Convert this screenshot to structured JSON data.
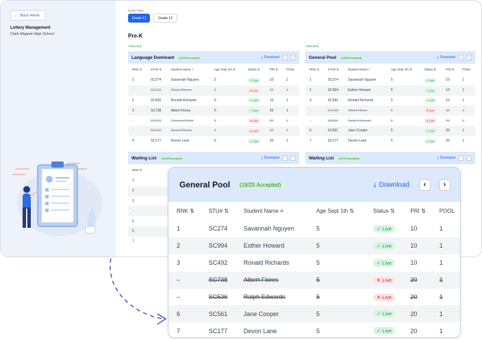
{
  "sidebar": {
    "back_label": "Back Home",
    "title": "Lottery Management",
    "school": "Clark Magnet High School"
  },
  "main": {
    "filter_label": "Smart Filter",
    "grades": [
      "Grade 11",
      "Grade 12"
    ],
    "section_title": "Pre-K",
    "selected_label": "*Selected"
  },
  "columns": [
    "RNK",
    "STU#",
    "Student Name",
    "Age Sept 1th",
    "Status",
    "PRI",
    "POOL"
  ],
  "download_label": "Download",
  "status_labels": {
    "live": "Live",
    "nolive": "Live"
  },
  "language_dominant": {
    "title": "Language Dominant",
    "badge": "(19/25 Accepted)",
    "rows": [
      {
        "rnk": "1",
        "stu": "SC274",
        "name": "Savannah Nguyen",
        "age": "5",
        "status": "live",
        "pri": "10",
        "pool": "1"
      },
      {
        "rnk": "–",
        "stu": "SC423",
        "name": "Wade Warren",
        "age": "5",
        "status": "nolive",
        "pri": "10",
        "pool": "1"
      },
      {
        "rnk": "2",
        "stu": "SC492",
        "name": "Ronald Richards",
        "age": "5",
        "status": "live",
        "pri": "10",
        "pool": "1"
      },
      {
        "rnk": "3",
        "stu": "SC738",
        "name": "Albert Flores",
        "age": "5",
        "status": "live",
        "pri": "20",
        "pool": "1"
      },
      {
        "rnk": "–",
        "stu": "SC463",
        "name": "Theresa Webb",
        "age": "5",
        "status": "nolive",
        "pri": "50",
        "pool": "1"
      },
      {
        "rnk": "–",
        "stu": "SC423",
        "name": "Wade Warren",
        "age": "5",
        "status": "nolive",
        "pri": "50",
        "pool": "1"
      },
      {
        "rnk": "4",
        "stu": "SC177",
        "name": "Devon Lane",
        "age": "5",
        "status": "live",
        "pri": "20",
        "pool": "1"
      }
    ]
  },
  "general_pool": {
    "title": "General Pool",
    "badge": "(19/25 Accepted)",
    "rows": [
      {
        "rnk": "1",
        "stu": "SC274",
        "name": "Savannah Nguyen",
        "age": "5",
        "status": "live",
        "pri": "10",
        "pool": "1"
      },
      {
        "rnk": "2",
        "stu": "SC994",
        "name": "Esther Howard",
        "age": "5",
        "status": "live",
        "pri": "10",
        "pool": "1"
      },
      {
        "rnk": "3",
        "stu": "SC492",
        "name": "Ronald Richards",
        "age": "5",
        "status": "live",
        "pri": "10",
        "pool": "1"
      },
      {
        "rnk": "–",
        "stu": "SC738",
        "name": "Albert Flores",
        "age": "5",
        "status": "nolive",
        "pri": "20",
        "pool": "1"
      },
      {
        "rnk": "–",
        "stu": "SC536",
        "name": "Ralph Edwards",
        "age": "5",
        "status": "nolive",
        "pri": "20",
        "pool": "1"
      },
      {
        "rnk": "6",
        "stu": "SC561",
        "name": "Jane Cooper",
        "age": "5",
        "status": "live",
        "pri": "20",
        "pool": "1"
      },
      {
        "rnk": "7",
        "stu": "SC177",
        "name": "Devon Lane",
        "age": "5",
        "status": "live",
        "pri": "20",
        "pool": "1"
      }
    ]
  },
  "waiting_list": {
    "title": "Waiting List",
    "badge": "(19/25 Accepted)",
    "rows": [
      {
        "rnk": "1",
        "stu": "SC274",
        "name": "",
        "age": "",
        "status": "",
        "pri": "",
        "pool": "",
        "dim": false
      },
      {
        "rnk": "2",
        "stu": "SC994",
        "name": "",
        "age": "",
        "status": "",
        "pri": "",
        "pool": "",
        "dim": false
      },
      {
        "rnk": "3",
        "stu": "SC492",
        "name": "",
        "age": "",
        "status": "",
        "pri": "",
        "pool": "",
        "dim": false
      },
      {
        "rnk": "–",
        "stu": "SC738",
        "name": "",
        "age": "",
        "status": "",
        "pri": "",
        "pool": "",
        "dim": true
      },
      {
        "rnk": "5",
        "stu": "SC536",
        "name": "",
        "age": "",
        "status": "",
        "pri": "",
        "pool": "",
        "dim": false
      },
      {
        "rnk": "6",
        "stu": "SC561",
        "name": "",
        "age": "",
        "status": "",
        "pri": "",
        "pool": "",
        "dim": false
      },
      {
        "rnk": "7",
        "stu": "SC177",
        "name": "",
        "age": "",
        "status": "",
        "pri": "",
        "pool": "",
        "dim": false
      }
    ]
  },
  "waiting_list_2": {
    "title": "Waiting List",
    "badge": "(19/25 Accepted)"
  },
  "colors": {
    "accent": "#2563eb",
    "live": "#16a34a",
    "nolive": "#dc2626",
    "header_bg": "#dce8fb"
  }
}
